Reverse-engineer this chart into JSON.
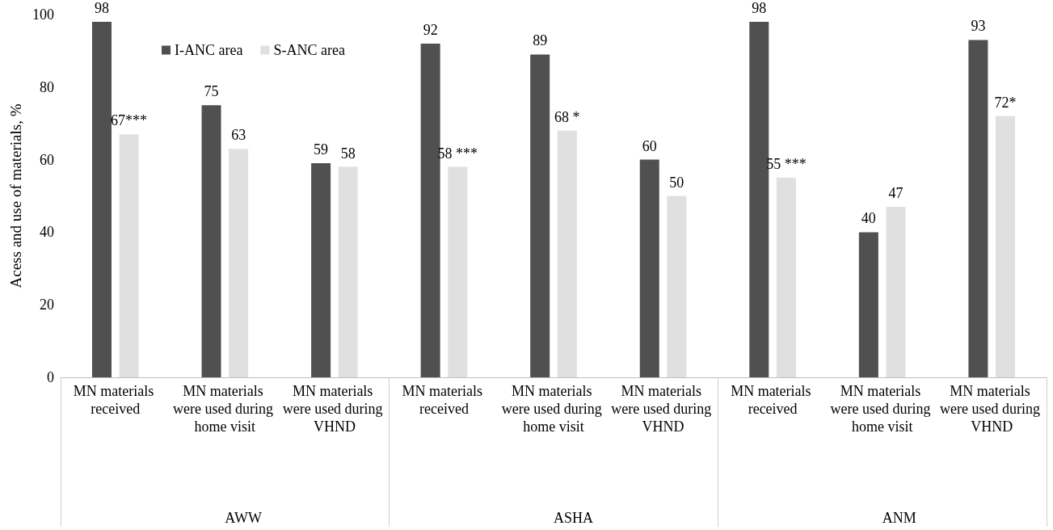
{
  "chart_data": {
    "type": "bar",
    "ylabel": "Acess and use of materials, %",
    "categories": [
      "MN materials received",
      "MN materials were used during home visit",
      "MN materials were used during VHND",
      "MN materials received",
      "MN materials were used during home visit",
      "MN materials were used during VHND",
      "MN materials received",
      "MN materials were used during home visit",
      "MN materials were used during VHND"
    ],
    "series": [
      {
        "name": "I-ANC area",
        "color": "#505050",
        "values": [
          98,
          75,
          59,
          92,
          89,
          60,
          98,
          40,
          93
        ],
        "value_labels": [
          "98",
          "75",
          "59",
          "92",
          "89",
          "60",
          "98",
          "40",
          "93"
        ]
      },
      {
        "name": "S-ANC area",
        "color": "#e0e0e0",
        "values": [
          67,
          63,
          58,
          58,
          68,
          50,
          55,
          47,
          72
        ],
        "value_labels": [
          "67***",
          "63",
          "58",
          "58 ***",
          "68 *",
          "50",
          "55 ***",
          "47",
          "72*"
        ]
      }
    ],
    "annotations": [
      "AWW",
      "ASHA",
      "ANM"
    ],
    "ylim": [
      0,
      100
    ],
    "yticks": [
      0,
      20,
      40,
      60,
      80,
      100
    ],
    "grid": false,
    "legend": "top left"
  }
}
